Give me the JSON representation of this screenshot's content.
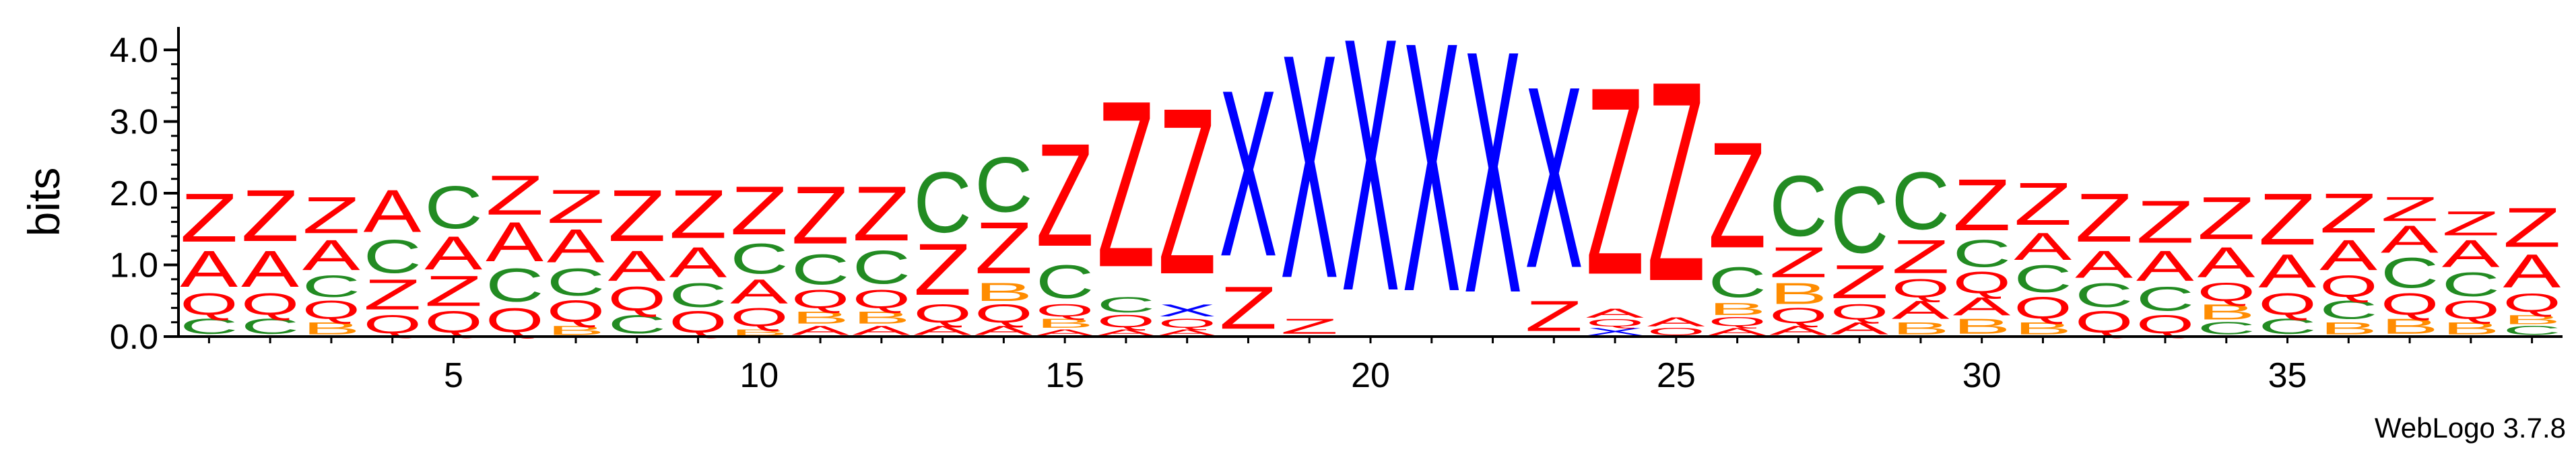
{
  "chart_data": {
    "type": "sequence-logo",
    "ylabel": "bits",
    "ylim": [
      0,
      4.32
    ],
    "yticks": [
      "0.0",
      "1.0",
      "2.0",
      "3.0",
      "4.0"
    ],
    "xticks": [
      5,
      10,
      15,
      20,
      25,
      30,
      35
    ],
    "credit": "WebLogo 3.7.8",
    "colors": {
      "Z": "#ff0000",
      "A": "#ff0000",
      "X": "#0000ff",
      "C": "#228b22",
      "Q": "#ff0000",
      "B": "#ff8c00"
    },
    "positions": [
      {
        "pos": 1,
        "letters": [
          [
            "C",
            0.25
          ],
          [
            "Q",
            0.35
          ],
          [
            "A",
            0.6
          ],
          [
            "Z",
            0.8
          ]
        ]
      },
      {
        "pos": 2,
        "letters": [
          [
            "C",
            0.25
          ],
          [
            "Q",
            0.35
          ],
          [
            "A",
            0.6
          ],
          [
            "Z",
            0.85
          ]
        ]
      },
      {
        "pos": 3,
        "letters": [
          [
            "B",
            0.2
          ],
          [
            "Q",
            0.3
          ],
          [
            "C",
            0.35
          ],
          [
            "A",
            0.5
          ],
          [
            "Z",
            0.6
          ]
        ]
      },
      {
        "pos": 4,
        "letters": [
          [
            "Q",
            0.3
          ],
          [
            "Z",
            0.5
          ],
          [
            "C",
            0.55
          ],
          [
            "A",
            0.7
          ]
        ]
      },
      {
        "pos": 5,
        "letters": [
          [
            "Q",
            0.35
          ],
          [
            "Z",
            0.5
          ],
          [
            "A",
            0.55
          ],
          [
            "C",
            0.7
          ]
        ]
      },
      {
        "pos": 6,
        "letters": [
          [
            "Q",
            0.4
          ],
          [
            "C",
            0.55
          ],
          [
            "A",
            0.65
          ],
          [
            "Z",
            0.65
          ]
        ]
      },
      {
        "pos": 7,
        "letters": [
          [
            "B",
            0.15
          ],
          [
            "Q",
            0.35
          ],
          [
            "C",
            0.45
          ],
          [
            "A",
            0.55
          ],
          [
            "Z",
            0.55
          ]
        ]
      },
      {
        "pos": 8,
        "letters": [
          [
            "C",
            0.3
          ],
          [
            "Q",
            0.4
          ],
          [
            "A",
            0.5
          ],
          [
            "Z",
            0.85
          ]
        ]
      },
      {
        "pos": 9,
        "letters": [
          [
            "Q",
            0.35
          ],
          [
            "C",
            0.4
          ],
          [
            "A",
            0.5
          ],
          [
            "Z",
            0.8
          ]
        ]
      },
      {
        "pos": 10,
        "letters": [
          [
            "B",
            0.1
          ],
          [
            "Q",
            0.3
          ],
          [
            "A",
            0.4
          ],
          [
            "C",
            0.5
          ],
          [
            "Z",
            0.8
          ]
        ]
      },
      {
        "pos": 11,
        "letters": [
          [
            "A",
            0.15
          ],
          [
            "B",
            0.2
          ],
          [
            "Q",
            0.3
          ],
          [
            "C",
            0.5
          ],
          [
            "Z",
            0.95
          ]
        ]
      },
      {
        "pos": 12,
        "letters": [
          [
            "A",
            0.15
          ],
          [
            "B",
            0.2
          ],
          [
            "Q",
            0.3
          ],
          [
            "C",
            0.55
          ],
          [
            "Z",
            0.9
          ]
        ]
      },
      {
        "pos": 13,
        "letters": [
          [
            "A",
            0.15
          ],
          [
            "Q",
            0.3
          ],
          [
            "Z",
            0.85
          ],
          [
            "C",
            1.0
          ]
        ]
      },
      {
        "pos": 14,
        "letters": [
          [
            "A",
            0.15
          ],
          [
            "Q",
            0.3
          ],
          [
            "B",
            0.3
          ],
          [
            "Z",
            0.85
          ],
          [
            "C",
            0.9
          ]
        ]
      },
      {
        "pos": 15,
        "letters": [
          [
            "A",
            0.1
          ],
          [
            "B",
            0.15
          ],
          [
            "Q",
            0.2
          ],
          [
            "C",
            0.55
          ],
          [
            "Z",
            1.7
          ]
        ]
      },
      {
        "pos": 16,
        "letters": [
          [
            "A",
            0.1
          ],
          [
            "Q",
            0.2
          ],
          [
            "C",
            0.25
          ],
          [
            "Z",
            2.75
          ]
        ]
      },
      {
        "pos": 17,
        "letters": [
          [
            "A",
            0.1
          ],
          [
            "Q",
            0.15
          ],
          [
            "X",
            0.2
          ],
          [
            "Z",
            2.75
          ]
        ]
      },
      {
        "pos": 18,
        "letters": [
          [
            "Z",
            0.7
          ],
          [
            "X",
            2.75
          ]
        ]
      },
      {
        "pos": 19,
        "letters": [
          [
            "Z",
            0.25
          ],
          [
            "X",
            3.7
          ]
        ]
      },
      {
        "pos": 20,
        "letters": [
          [
            "X",
            4.18
          ]
        ]
      },
      {
        "pos": 21,
        "letters": [
          [
            "X",
            4.12
          ]
        ]
      },
      {
        "pos": 22,
        "letters": [
          [
            "X",
            4.0
          ]
        ]
      },
      {
        "pos": 23,
        "letters": [
          [
            "Z",
            0.5
          ],
          [
            "X",
            3.0
          ]
        ]
      },
      {
        "pos": 24,
        "letters": [
          [
            "X",
            0.12
          ],
          [
            "Q",
            0.12
          ],
          [
            "A",
            0.15
          ],
          [
            "Z",
            3.1
          ]
        ]
      },
      {
        "pos": 25,
        "letters": [
          [
            "Q",
            0.12
          ],
          [
            "A",
            0.15
          ],
          [
            "Z",
            3.3
          ]
        ]
      },
      {
        "pos": 26,
        "letters": [
          [
            "A",
            0.12
          ],
          [
            "Q",
            0.15
          ],
          [
            "B",
            0.2
          ],
          [
            "C",
            0.5
          ],
          [
            "Z",
            1.75
          ]
        ]
      },
      {
        "pos": 27,
        "letters": [
          [
            "A",
            0.15
          ],
          [
            "Q",
            0.25
          ],
          [
            "B",
            0.35
          ],
          [
            "Z",
            0.5
          ],
          [
            "C",
            1.0
          ]
        ]
      },
      {
        "pos": 28,
        "letters": [
          [
            "A",
            0.2
          ],
          [
            "Q",
            0.25
          ],
          [
            "Z",
            0.55
          ],
          [
            "C",
            1.1
          ]
        ]
      },
      {
        "pos": 29,
        "letters": [
          [
            "B",
            0.2
          ],
          [
            "A",
            0.3
          ],
          [
            "Q",
            0.3
          ],
          [
            "Z",
            0.55
          ],
          [
            "C",
            0.95
          ]
        ]
      },
      {
        "pos": 30,
        "letters": [
          [
            "B",
            0.25
          ],
          [
            "A",
            0.3
          ],
          [
            "Q",
            0.35
          ],
          [
            "C",
            0.45
          ],
          [
            "Z",
            0.85
          ]
        ]
      },
      {
        "pos": 31,
        "letters": [
          [
            "B",
            0.2
          ],
          [
            "Q",
            0.35
          ],
          [
            "C",
            0.45
          ],
          [
            "A",
            0.45
          ],
          [
            "Z",
            0.7
          ]
        ]
      },
      {
        "pos": 32,
        "letters": [
          [
            "Q",
            0.35
          ],
          [
            "C",
            0.4
          ],
          [
            "A",
            0.45
          ],
          [
            "Z",
            0.8
          ]
        ]
      },
      {
        "pos": 33,
        "letters": [
          [
            "Q",
            0.3
          ],
          [
            "C",
            0.4
          ],
          [
            "A",
            0.5
          ],
          [
            "Z",
            0.7
          ]
        ]
      },
      {
        "pos": 34,
        "letters": [
          [
            "C",
            0.2
          ],
          [
            "B",
            0.25
          ],
          [
            "Q",
            0.3
          ],
          [
            "A",
            0.5
          ],
          [
            "Z",
            0.7
          ]
        ]
      },
      {
        "pos": 35,
        "letters": [
          [
            "C",
            0.25
          ],
          [
            "Q",
            0.35
          ],
          [
            "A",
            0.55
          ],
          [
            "Z",
            0.85
          ]
        ]
      },
      {
        "pos": 36,
        "letters": [
          [
            "B",
            0.2
          ],
          [
            "C",
            0.3
          ],
          [
            "Q",
            0.35
          ],
          [
            "A",
            0.5
          ],
          [
            "Z",
            0.65
          ]
        ]
      },
      {
        "pos": 37,
        "letters": [
          [
            "B",
            0.25
          ],
          [
            "Q",
            0.35
          ],
          [
            "C",
            0.5
          ],
          [
            "A",
            0.45
          ],
          [
            "Z",
            0.4
          ]
        ]
      },
      {
        "pos": 38,
        "letters": [
          [
            "B",
            0.2
          ],
          [
            "Q",
            0.3
          ],
          [
            "C",
            0.4
          ],
          [
            "A",
            0.45
          ],
          [
            "Z",
            0.4
          ]
        ]
      },
      {
        "pos": 39,
        "letters": [
          [
            "C",
            0.15
          ],
          [
            "B",
            0.15
          ],
          [
            "Q",
            0.3
          ],
          [
            "A",
            0.55
          ],
          [
            "Z",
            0.65
          ]
        ]
      }
    ]
  }
}
